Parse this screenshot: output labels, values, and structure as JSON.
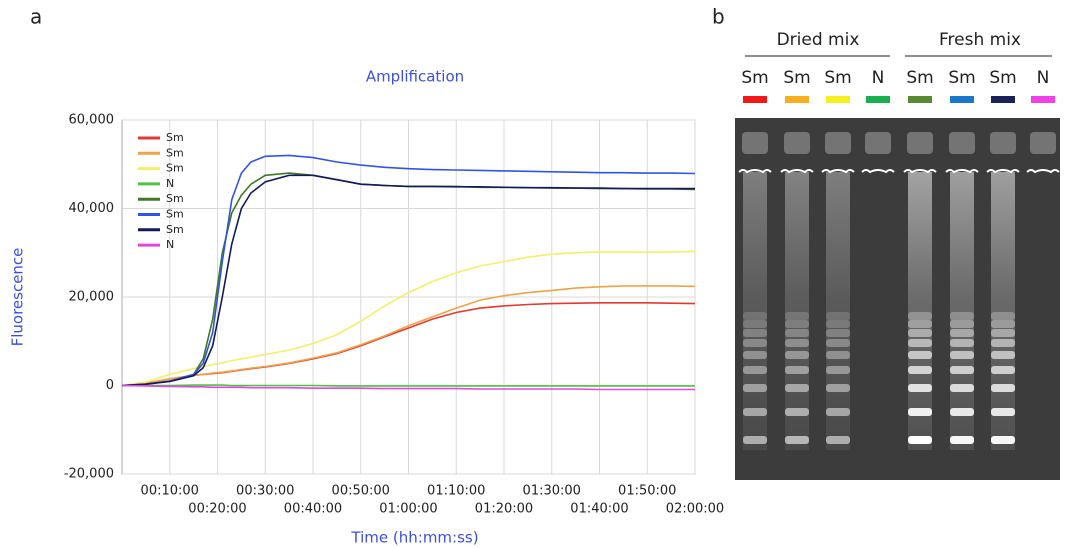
{
  "panel_labels": [
    "a",
    "b"
  ],
  "chart_data": {
    "type": "line",
    "title": "Amplification",
    "y_label": "Fluorescence",
    "x_label": "Time (hh:mm:ss)",
    "x": [
      0,
      5,
      10,
      15,
      17,
      19,
      21,
      23,
      25,
      27,
      30,
      35,
      40,
      45,
      50,
      55,
      60,
      65,
      70,
      75,
      80,
      85,
      90,
      95,
      100,
      105,
      110,
      115,
      120
    ],
    "xlim": [
      0,
      120
    ],
    "xticks": [
      {
        "value": 10,
        "label": "00:10:00"
      },
      {
        "value": 20,
        "label": "00:20:00"
      },
      {
        "value": 30,
        "label": "00:30:00"
      },
      {
        "value": 40,
        "label": "00:40:00"
      },
      {
        "value": 50,
        "label": "00:50:00"
      },
      {
        "value": 60,
        "label": "01:00:00"
      },
      {
        "value": 70,
        "label": "01:10:00"
      },
      {
        "value": 80,
        "label": "01:20:00"
      },
      {
        "value": 90,
        "label": "01:30:00"
      },
      {
        "value": 100,
        "label": "01:40:00"
      },
      {
        "value": 110,
        "label": "01:50:00"
      },
      {
        "value": 120,
        "label": "02:00:00"
      }
    ],
    "ylim": [
      -20000,
      60000
    ],
    "yticks": [
      {
        "value": -20000,
        "label": "-20,000"
      },
      0,
      {
        "value": 20000,
        "label": "20,000"
      },
      {
        "value": 40000,
        "label": "40,000"
      },
      {
        "value": 60000,
        "label": "60,000"
      }
    ],
    "grid": true,
    "legend": "upper left",
    "series": [
      {
        "name": "Sm",
        "color": "#e03a32",
        "values": [
          0,
          500,
          1500,
          2300,
          2500,
          2700,
          2900,
          3200,
          3500,
          3800,
          4200,
          5000,
          6000,
          7200,
          9000,
          11000,
          13000,
          15000,
          16500,
          17500,
          18000,
          18300,
          18500,
          18600,
          18700,
          18700,
          18700,
          18600,
          18500
        ]
      },
      {
        "name": "Sm",
        "color": "#f0a24a",
        "values": [
          0,
          500,
          1500,
          2300,
          2500,
          2800,
          3000,
          3300,
          3600,
          3900,
          4300,
          5100,
          6200,
          7400,
          9200,
          11200,
          13500,
          15500,
          17500,
          19300,
          20300,
          21000,
          21500,
          22000,
          22300,
          22500,
          22500,
          22500,
          22400
        ]
      },
      {
        "name": "Sm",
        "color": "#f4ee6a",
        "values": [
          0,
          800,
          2500,
          3800,
          4300,
          4700,
          5100,
          5600,
          6000,
          6400,
          7000,
          8000,
          9500,
          11500,
          14500,
          18000,
          21000,
          23500,
          25500,
          27000,
          28000,
          29000,
          29700,
          30000,
          30200,
          30200,
          30100,
          30200,
          30300
        ]
      },
      {
        "name": "N",
        "color": "#4cc442",
        "values": [
          0,
          0,
          0,
          100,
          100,
          100,
          100,
          0,
          0,
          0,
          0,
          0,
          0,
          -100,
          -100,
          -100,
          -100,
          -100,
          -100,
          -100,
          -100,
          -100,
          -100,
          -100,
          -100,
          -100,
          -100,
          -100,
          -100
        ]
      },
      {
        "name": "Sm",
        "color": "#3f7a22",
        "values": [
          0,
          300,
          1000,
          2500,
          6000,
          15000,
          30000,
          39000,
          43000,
          45500,
          47500,
          48000,
          47500,
          46500,
          45500,
          45200,
          45000,
          45000,
          45000,
          44800,
          44800,
          44700,
          44600,
          44600,
          44500,
          44500,
          44400,
          44400,
          44300
        ]
      },
      {
        "name": "Sm",
        "color": "#3254e4",
        "values": [
          0,
          300,
          1000,
          2500,
          5000,
          12000,
          28000,
          42000,
          48000,
          50500,
          51800,
          52000,
          51500,
          50500,
          49800,
          49300,
          49000,
          48800,
          48700,
          48600,
          48500,
          48400,
          48300,
          48200,
          48100,
          48100,
          48000,
          48000,
          47900
        ]
      },
      {
        "name": "Sm",
        "color": "#151a5e",
        "values": [
          0,
          300,
          900,
          2200,
          4000,
          9000,
          20000,
          32000,
          40000,
          43500,
          46000,
          47500,
          47500,
          46500,
          45500,
          45200,
          45000,
          45000,
          44900,
          44900,
          44800,
          44700,
          44700,
          44600,
          44600,
          44500,
          44500,
          44500,
          44500
        ]
      },
      {
        "name": "N",
        "color": "#e048e0",
        "values": [
          0,
          -100,
          -200,
          -300,
          -300,
          -400,
          -400,
          -400,
          -400,
          -500,
          -500,
          -500,
          -600,
          -600,
          -600,
          -700,
          -700,
          -700,
          -700,
          -800,
          -800,
          -800,
          -800,
          -800,
          -900,
          -900,
          -900,
          -900,
          -900
        ]
      }
    ]
  },
  "gel": {
    "groups": [
      "Dried mix",
      "Fresh mix"
    ],
    "lanes": [
      {
        "label": "Sm",
        "color": "#f01818"
      },
      {
        "label": "Sm",
        "color": "#f8b020"
      },
      {
        "label": "Sm",
        "color": "#f6f020"
      },
      {
        "label": "N",
        "color": "#18b050"
      },
      {
        "label": "Sm",
        "color": "#5a8a30"
      },
      {
        "label": "Sm",
        "color": "#1a78c8"
      },
      {
        "label": "Sm",
        "color": "#1a2258"
      },
      {
        "label": "N",
        "color": "#f040e8"
      }
    ]
  }
}
